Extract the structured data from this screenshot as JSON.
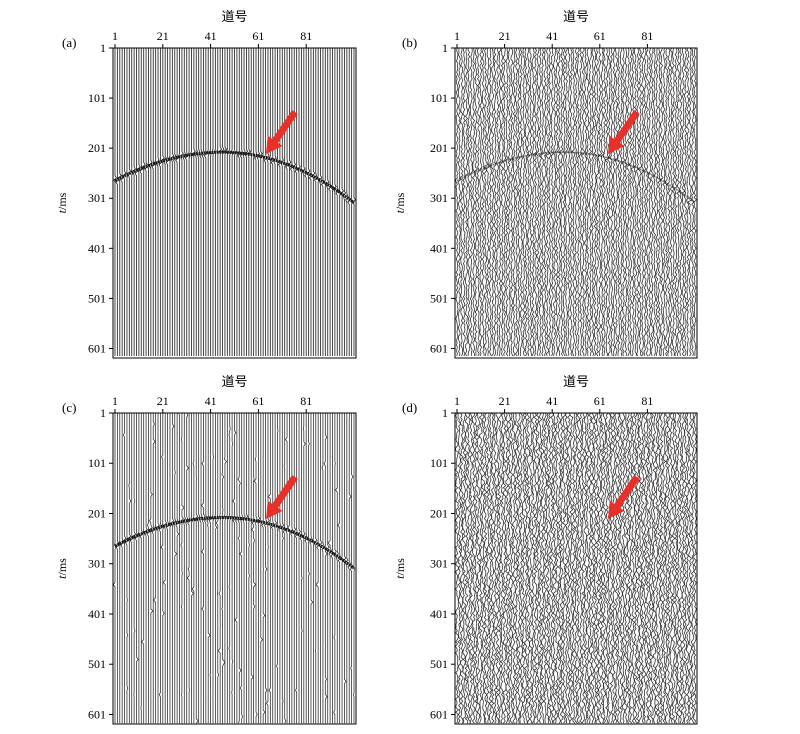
{
  "chart_data": [
    {
      "type": "wiggle-section",
      "panel_label": "(a)",
      "xlabel": "道号",
      "ylabel_italic": "t",
      "ylabel_unit": "/ms",
      "xticks": [
        1,
        21,
        41,
        61,
        81
      ],
      "yticks": [
        1,
        101,
        201,
        301,
        401,
        501,
        601
      ],
      "xlim": [
        1,
        101
      ],
      "ylim": [
        1,
        620
      ],
      "n_traces": 101,
      "reflector": {
        "apex_trace": 46,
        "apex_time_ms": 209,
        "t_at_trace_1": 266,
        "t_at_trace_101": 310
      },
      "noise_level": "none",
      "arrow": true
    },
    {
      "type": "wiggle-section",
      "panel_label": "(b)",
      "xlabel": "道号",
      "ylabel_italic": "t",
      "ylabel_unit": "/ms",
      "xticks": [
        1,
        21,
        41,
        61,
        81
      ],
      "yticks": [
        1,
        101,
        201,
        301,
        401,
        501,
        601
      ],
      "xlim": [
        1,
        101
      ],
      "ylim": [
        1,
        620
      ],
      "n_traces": 101,
      "reflector": {
        "apex_trace": 46,
        "apex_time_ms": 209,
        "t_at_trace_1": 266,
        "t_at_trace_101": 310
      },
      "noise_level": "dense random",
      "arrow": true
    },
    {
      "type": "wiggle-section",
      "panel_label": "(c)",
      "xlabel": "道号",
      "ylabel_italic": "t",
      "ylabel_unit": "/ms",
      "xticks": [
        1,
        21,
        41,
        61,
        81
      ],
      "yticks": [
        1,
        101,
        201,
        301,
        401,
        501,
        601
      ],
      "xlim": [
        1,
        101
      ],
      "ylim": [
        1,
        620
      ],
      "n_traces": 101,
      "reflector": {
        "apex_trace": 46,
        "apex_time_ms": 209,
        "t_at_trace_1": 266,
        "t_at_trace_101": 310
      },
      "noise_level": "sparse spikes",
      "arrow": true
    },
    {
      "type": "wiggle-section",
      "panel_label": "(d)",
      "xlabel": "道号",
      "ylabel_italic": "t",
      "ylabel_unit": "/ms",
      "xticks": [
        1,
        21,
        41,
        61,
        81
      ],
      "yticks": [
        1,
        101,
        201,
        301,
        401,
        501,
        601
      ],
      "xlim": [
        1,
        101
      ],
      "ylim": [
        1,
        620
      ],
      "n_traces": 101,
      "reflector": null,
      "noise_level": "very dense random",
      "arrow": true
    }
  ],
  "colors": {
    "trace": "#333333",
    "frame": "#000000",
    "arrow": "#e8302a",
    "background": "#ffffff"
  }
}
